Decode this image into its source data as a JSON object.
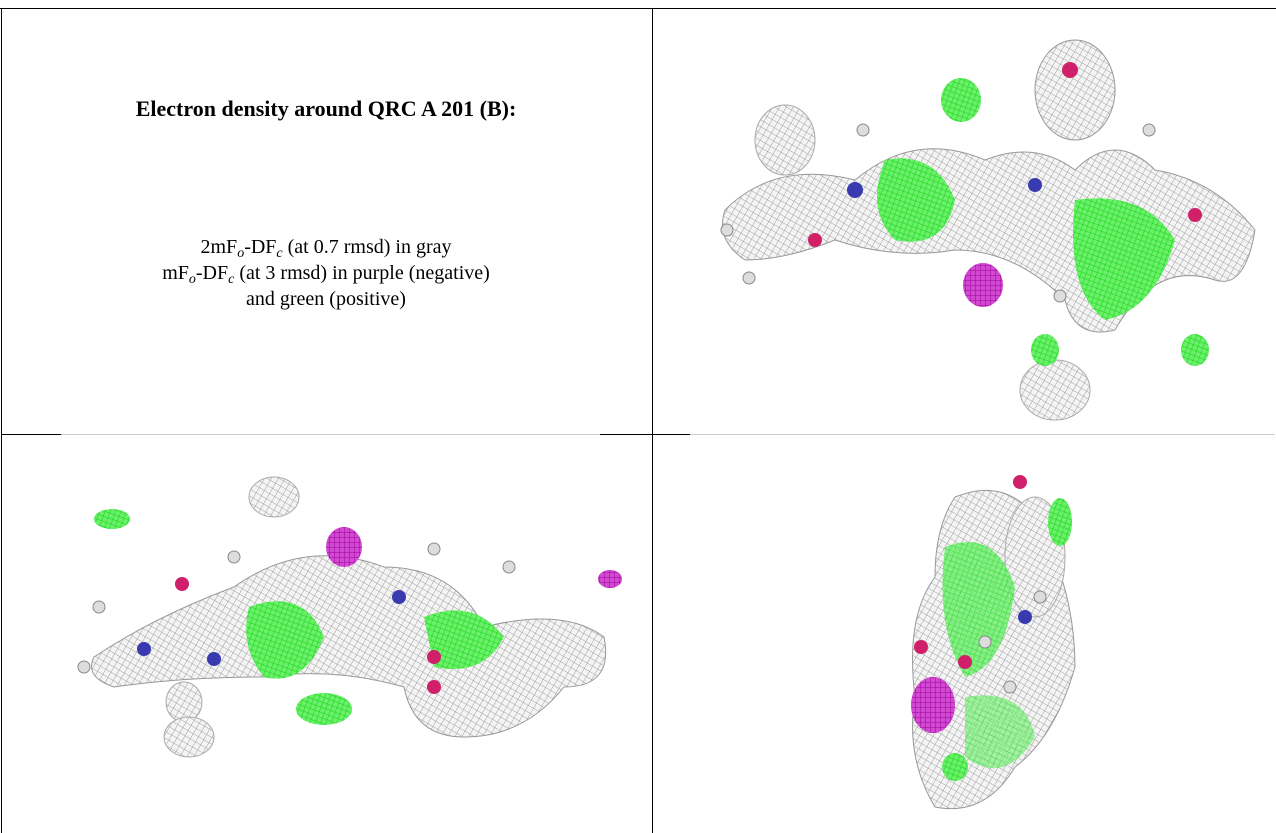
{
  "caption": {
    "title": "Electron density around QRC A 201 (B):",
    "lines": [
      [
        "2mF",
        "o",
        "-DF",
        "c",
        "(at 0.7 rmsd) in gray"
      ],
      [
        "mF",
        "o",
        "-DF",
        "c",
        "(at 3 rmsd) in purple (negative)"
      ],
      [
        "and green (positive)"
      ]
    ]
  }
}
